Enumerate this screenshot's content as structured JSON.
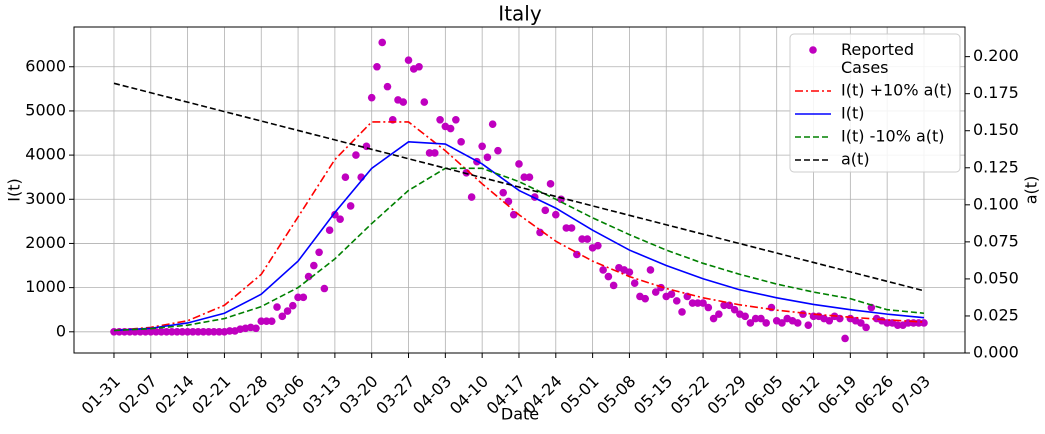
{
  "chart_data": {
    "type": "line",
    "title": "Italy",
    "xlabel": "Date",
    "ylabel": "I(t)",
    "y2label": "a(t)",
    "xlim": [
      -7.6,
      161.8
    ],
    "ylim": [
      -480,
      6900
    ],
    "y2lim": [
      0,
      0.22
    ],
    "grid": true,
    "legend": "upper right",
    "xticks": [
      {
        "value": 0,
        "label": "01-31"
      },
      {
        "value": 7,
        "label": "02-07"
      },
      {
        "value": 14,
        "label": "02-14"
      },
      {
        "value": 21,
        "label": "02-21"
      },
      {
        "value": 28,
        "label": "02-28"
      },
      {
        "value": 35,
        "label": "03-06"
      },
      {
        "value": 42,
        "label": "03-13"
      },
      {
        "value": 49,
        "label": "03-20"
      },
      {
        "value": 56,
        "label": "03-27"
      },
      {
        "value": 63,
        "label": "04-03"
      },
      {
        "value": 70,
        "label": "04-10"
      },
      {
        "value": 77,
        "label": "04-17"
      },
      {
        "value": 84,
        "label": "04-24"
      },
      {
        "value": 91,
        "label": "05-01"
      },
      {
        "value": 98,
        "label": "05-08"
      },
      {
        "value": 105,
        "label": "05-15"
      },
      {
        "value": 112,
        "label": "05-22"
      },
      {
        "value": 119,
        "label": "05-29"
      },
      {
        "value": 126,
        "label": "06-05"
      },
      {
        "value": 133,
        "label": "06-12"
      },
      {
        "value": 140,
        "label": "06-19"
      },
      {
        "value": 147,
        "label": "06-26"
      },
      {
        "value": 154,
        "label": "07-03"
      }
    ],
    "yticks": [
      0,
      1000,
      2000,
      3000,
      4000,
      5000,
      6000
    ],
    "y2ticks": [
      {
        "value": 0,
        "label": "0.000"
      },
      {
        "value": 0.025,
        "label": "0.025"
      },
      {
        "value": 0.05,
        "label": "0.050"
      },
      {
        "value": 0.075,
        "label": "0.075"
      },
      {
        "value": 0.1,
        "label": "0.100"
      },
      {
        "value": 0.125,
        "label": "0.125"
      },
      {
        "value": 0.15,
        "label": "0.150"
      },
      {
        "value": 0.175,
        "label": "0.175"
      },
      {
        "value": 0.2,
        "label": "0.200"
      }
    ],
    "series": [
      {
        "name": "Reported\nCases",
        "type": "scatter",
        "color": "#bf00bf",
        "x": [
          0,
          1,
          2,
          3,
          4,
          5,
          6,
          7,
          8,
          9,
          10,
          11,
          12,
          13,
          14,
          15,
          16,
          17,
          18,
          19,
          20,
          21,
          22,
          23,
          24,
          25,
          26,
          27,
          28,
          29,
          30,
          31,
          32,
          33,
          34,
          35,
          36,
          37,
          38,
          39,
          40,
          41,
          42,
          43,
          44,
          45,
          46,
          47,
          48,
          49,
          50,
          51,
          52,
          53,
          54,
          55,
          56,
          57,
          58,
          59,
          60,
          61,
          62,
          63,
          64,
          65,
          66,
          67,
          68,
          69,
          70,
          71,
          72,
          73,
          74,
          75,
          76,
          77,
          78,
          79,
          80,
          81,
          82,
          83,
          84,
          85,
          86,
          87,
          88,
          89,
          90,
          91,
          92,
          93,
          94,
          95,
          96,
          97,
          98,
          99,
          100,
          101,
          102,
          103,
          104,
          105,
          106,
          107,
          108,
          109,
          110,
          111,
          112,
          113,
          114,
          115,
          116,
          117,
          118,
          119,
          120,
          121,
          122,
          123,
          124,
          125,
          126,
          127,
          128,
          129,
          130,
          131,
          132,
          133,
          134,
          135,
          136,
          137,
          138,
          139,
          140,
          141,
          142,
          143,
          144,
          145,
          146,
          147,
          148,
          149,
          150,
          151,
          152,
          153,
          154
        ],
        "values": [
          0,
          0,
          0,
          0,
          0,
          0,
          0,
          0,
          0,
          0,
          0,
          0,
          0,
          0,
          0,
          0,
          0,
          0,
          0,
          0,
          0,
          0,
          20,
          20,
          60,
          80,
          100,
          80,
          240,
          240,
          240,
          560,
          350,
          470,
          590,
          780,
          780,
          1250,
          1500,
          1800,
          980,
          2300,
          2650,
          2550,
          3500,
          2850,
          4000,
          3500,
          4200,
          5300,
          6000,
          6550,
          5550,
          4800,
          5250,
          5200,
          6150,
          5950,
          6000,
          5200,
          4050,
          4050,
          4800,
          4650,
          4600,
          4800,
          4300,
          3600,
          3050,
          3850,
          4200,
          3950,
          4700,
          4100,
          3150,
          2950,
          2650,
          3800,
          3500,
          3500,
          3050,
          2250,
          2750,
          3350,
          2650,
          3000,
          2350,
          2350,
          1750,
          2100,
          2100,
          1900,
          1950,
          1400,
          1250,
          1050,
          1450,
          1400,
          1350,
          1100,
          800,
          750,
          1400,
          900,
          1000,
          800,
          850,
          700,
          450,
          800,
          650,
          650,
          650,
          550,
          300,
          400,
          600,
          600,
          500,
          400,
          350,
          200,
          300,
          300,
          200,
          550,
          250,
          200,
          300,
          250,
          200,
          400,
          150,
          350,
          350,
          300,
          250,
          350,
          300,
          -150,
          300,
          250,
          200,
          100,
          550,
          300,
          250,
          200,
          200,
          150,
          150,
          200,
          200,
          200,
          200
        ]
      },
      {
        "name": "I(t) +10% a(t)",
        "type": "line",
        "style": "dashdot",
        "color": "#ff0000",
        "x": [
          0,
          7,
          14,
          21,
          28,
          35,
          42,
          49,
          56,
          63,
          70,
          77,
          84,
          91,
          98,
          105,
          112,
          119,
          126,
          133,
          140,
          147,
          154
        ],
        "values": [
          30,
          100,
          250,
          600,
          1300,
          2600,
          3900,
          4750,
          4750,
          4100,
          3350,
          2650,
          2050,
          1600,
          1250,
          980,
          770,
          610,
          490,
          400,
          330,
          270,
          220
        ]
      },
      {
        "name": "I(t)",
        "type": "line",
        "style": "solid",
        "color": "#0000ff",
        "x": [
          0,
          7,
          14,
          21,
          28,
          35,
          42,
          49,
          56,
          63,
          70,
          77,
          84,
          91,
          98,
          105,
          112,
          119,
          126,
          133,
          140,
          147,
          154
        ],
        "values": [
          30,
          80,
          200,
          420,
          850,
          1600,
          2700,
          3700,
          4300,
          4250,
          3800,
          3200,
          2800,
          2300,
          1850,
          1500,
          1200,
          950,
          770,
          620,
          500,
          400,
          320
        ]
      },
      {
        "name": "I(t) -10% a(t)",
        "type": "line",
        "style": "dashed",
        "color": "#008000",
        "x": [
          0,
          7,
          14,
          21,
          28,
          35,
          42,
          49,
          56,
          63,
          70,
          77,
          84,
          91,
          98,
          105,
          112,
          119,
          126,
          133,
          140,
          147,
          154
        ],
        "values": [
          30,
          70,
          150,
          300,
          570,
          1000,
          1650,
          2450,
          3200,
          3700,
          3700,
          3400,
          3000,
          2580,
          2200,
          1850,
          1550,
          1300,
          1080,
          900,
          750,
          500,
          420
        ]
      },
      {
        "name": "a(t)",
        "type": "line",
        "style": "dashed",
        "color": "#000000",
        "axis": "y2",
        "x": [
          0,
          154
        ],
        "values": [
          0.182,
          0.042
        ]
      }
    ]
  }
}
